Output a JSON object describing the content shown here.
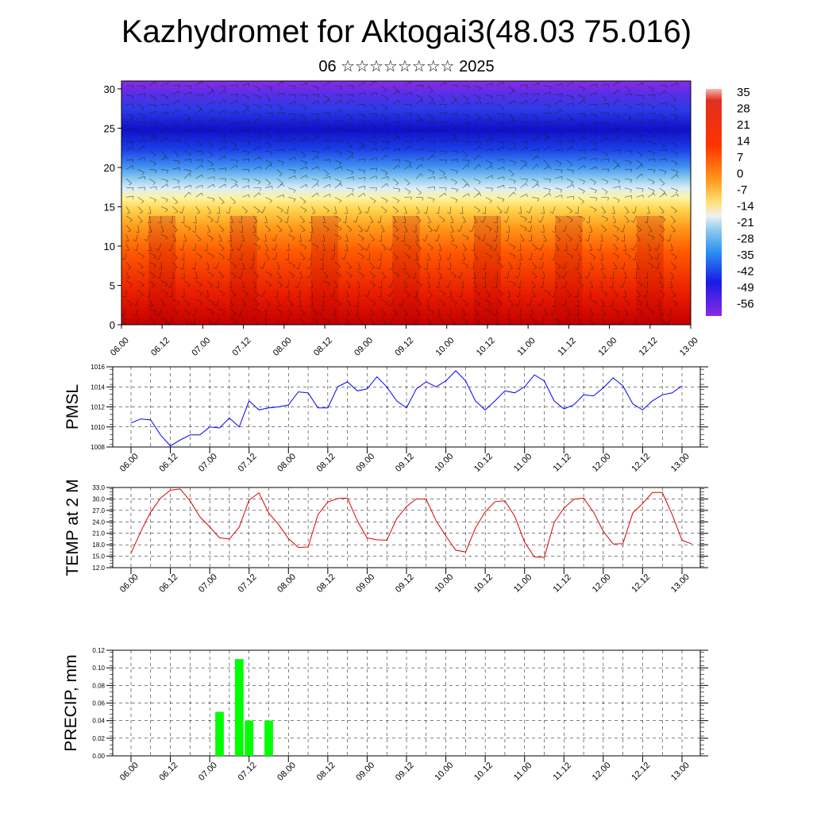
{
  "page": {
    "title": "Kazhydromet for Aktogai3(48.03 75.016)",
    "subtitle": "06 ☆☆☆☆☆☆☆☆ 2025"
  },
  "chart_data": [
    {
      "type": "heatmap",
      "y_ticks": [
        "0",
        "5",
        "10",
        "15",
        "20",
        "25",
        "30"
      ],
      "ylim": [
        0,
        31
      ],
      "x_ticks": [
        "06.00",
        "06.12",
        "07.00",
        "07.12",
        "08.00",
        "08.12",
        "09.00",
        "09.12",
        "10.00",
        "10.12",
        "11.00",
        "11.12",
        "12.00",
        "12.12",
        "13.00"
      ],
      "colorbar_labels": [
        "35",
        "28",
        "21",
        "14",
        "7",
        "0",
        "-7",
        "-14",
        "-21",
        "-28",
        "-35",
        "-42",
        "-49",
        "-56"
      ],
      "colorbar_range": [
        -63,
        42
      ],
      "colors": {
        "warm": "#e81a00",
        "mid": "#ffe27a",
        "cold": "#2a1ae6",
        "top": "#8a2be2"
      }
    },
    {
      "type": "line",
      "ylabel": "PMSL",
      "ylim": [
        1008,
        1016
      ],
      "y_ticks": [
        "1008",
        "1010",
        "1012",
        "1014",
        "1016"
      ],
      "x_ticks": [
        "06.00",
        "06.12",
        "07.00",
        "07.12",
        "08.00",
        "08.12",
        "09.00",
        "09.12",
        "10.00",
        "10.12",
        "11.00",
        "11.12",
        "12.00",
        "12.12",
        "13.00"
      ],
      "color": "#0000ff",
      "values": [
        1010.4,
        1010.8,
        1010.7,
        1009.2,
        1008.1,
        1008.7,
        1009.2,
        1009.2,
        1010.0,
        1009.9,
        1010.9,
        1010.0,
        1012.6,
        1011.7,
        1011.9,
        1012.0,
        1012.2,
        1013.5,
        1013.4,
        1011.9,
        1011.9,
        1014.0,
        1014.5,
        1013.6,
        1013.8,
        1015.0,
        1014.0,
        1012.6,
        1011.9,
        1013.8,
        1014.5,
        1014.0,
        1014.6,
        1015.6,
        1014.6,
        1012.6,
        1011.7,
        1012.6,
        1013.6,
        1013.4,
        1014.0,
        1015.2,
        1014.6,
        1012.6,
        1011.8,
        1012.2,
        1013.2,
        1013.1,
        1013.9,
        1014.9,
        1014.1,
        1012.3,
        1011.7,
        1012.6,
        1013.2,
        1013.4,
        1014.1
      ]
    },
    {
      "type": "line",
      "ylabel": "TEMP at 2 M",
      "ylim": [
        12.0,
        33.0
      ],
      "y_ticks": [
        "12.0",
        "15.0",
        "18.0",
        "21.0",
        "24.0",
        "27.0",
        "30.0",
        "33.0"
      ],
      "x_ticks": [
        "06.00",
        "06.12",
        "07.00",
        "07.12",
        "08.00",
        "08.12",
        "09.00",
        "09.12",
        "10.00",
        "10.12",
        "11.00",
        "11.12",
        "12.00",
        "12.12",
        "13.00"
      ],
      "color": "#dd0000",
      "values": [
        15.8,
        21.5,
        26.6,
        30.2,
        32.3,
        32.6,
        29.5,
        25.3,
        22.7,
        19.8,
        19.5,
        22.6,
        29.7,
        31.6,
        26.3,
        23.3,
        19.6,
        17.3,
        17.4,
        25.9,
        29.2,
        30.1,
        30.2,
        24.3,
        19.8,
        19.3,
        19.2,
        24.8,
        28.0,
        30.0,
        29.9,
        24.3,
        20.3,
        16.6,
        16.1,
        22.4,
        26.6,
        29.3,
        29.5,
        25.5,
        18.7,
        14.8,
        14.7,
        23.8,
        27.6,
        29.9,
        30.2,
        26.6,
        21.5,
        18.2,
        18.3,
        26.3,
        28.8,
        31.7,
        31.7,
        25.9,
        19.2,
        18.2
      ]
    },
    {
      "type": "bar",
      "ylabel": "PRECIP, mm",
      "ylim": [
        0.0,
        0.12
      ],
      "y_ticks": [
        "0.00",
        "0.02",
        "0.04",
        "0.06",
        "0.08",
        "0.10",
        "0.12"
      ],
      "x_ticks": [
        "06.00",
        "06.12",
        "07.00",
        "07.12",
        "08.00",
        "08.12",
        "09.00",
        "09.12",
        "10.00",
        "10.12",
        "11.00",
        "11.12",
        "12.00",
        "12.12",
        "13.00"
      ],
      "color": "#00ff00",
      "bars": [
        {
          "hour": 27,
          "value": 0.05
        },
        {
          "hour": 33,
          "value": 0.11
        },
        {
          "hour": 36,
          "value": 0.04
        },
        {
          "hour": 42,
          "value": 0.04
        }
      ]
    }
  ]
}
